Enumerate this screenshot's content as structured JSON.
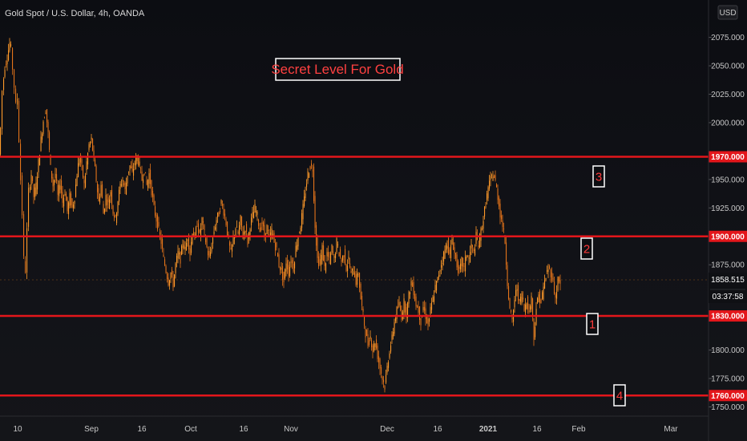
{
  "header": {
    "title": "Gold Spot / U.S. Dollar, 4h, OANDA"
  },
  "currency_button": "USD",
  "annotation": {
    "text": "Secret Level For Gold"
  },
  "colors": {
    "level_line": "#e3161b",
    "candles": "#ff8c1a",
    "accent": "#ff3b3b"
  },
  "current_price": {
    "value": "1858.515",
    "timer": "03:37:58"
  },
  "chart_data": {
    "type": "candlestick",
    "title": "Gold Spot / U.S. Dollar, 4h, OANDA",
    "ylim": [
      1732,
      2098
    ],
    "y_ticks": [
      {
        "value": 2075,
        "label": "2075.000"
      },
      {
        "value": 2050,
        "label": "2050.000"
      },
      {
        "value": 2025,
        "label": "2025.000"
      },
      {
        "value": 2000,
        "label": "2000.000"
      },
      {
        "value": 1950,
        "label": "1950.000"
      },
      {
        "value": 1925,
        "label": "1925.000"
      },
      {
        "value": 1875,
        "label": "1875.000"
      },
      {
        "value": 1800,
        "label": "1800.000"
      },
      {
        "value": 1775,
        "label": "1775.000"
      },
      {
        "value": 1750,
        "label": "1750.000"
      }
    ],
    "x_ticks": [
      "10",
      "Sep",
      "16",
      "Oct",
      "16",
      "Nov",
      "Dec",
      "16",
      "2021",
      "16",
      "Feb",
      "Mar"
    ],
    "x_ticks_bold": [
      "2021"
    ],
    "levels": [
      {
        "value": 1970,
        "label": "1970.000",
        "marker": "3"
      },
      {
        "value": 1900,
        "label": "1900.000",
        "marker": "2"
      },
      {
        "value": 1830,
        "label": "1830.000",
        "marker": "1"
      },
      {
        "value": 1760,
        "label": "1760.000",
        "marker": "4"
      }
    ],
    "price_path": [
      [
        0,
        1972
      ],
      [
        2,
        1995
      ],
      [
        4,
        2028
      ],
      [
        7,
        2050
      ],
      [
        10,
        2058
      ],
      [
        13,
        2070
      ],
      [
        15,
        2065
      ],
      [
        17,
        2048
      ],
      [
        19,
        2032
      ],
      [
        21,
        2015
      ],
      [
        23,
        2022
      ],
      [
        25,
        1985
      ],
      [
        27,
        1950
      ],
      [
        29,
        1920
      ],
      [
        31,
        1880
      ],
      [
        33,
        1870
      ],
      [
        35,
        1905
      ],
      [
        37,
        1940
      ],
      [
        40,
        1955
      ],
      [
        43,
        1935
      ],
      [
        46,
        1945
      ],
      [
        49,
        1965
      ],
      [
        52,
        1985
      ],
      [
        55,
        2002
      ],
      [
        58,
        2012
      ],
      [
        61,
        1990
      ],
      [
        64,
        1960
      ],
      [
        67,
        1945
      ],
      [
        70,
        1955
      ],
      [
        73,
        1935
      ],
      [
        76,
        1948
      ],
      [
        79,
        1930
      ],
      [
        82,
        1940
      ],
      [
        85,
        1922
      ],
      [
        88,
        1935
      ],
      [
        91,
        1925
      ],
      [
        94,
        1935
      ],
      [
        97,
        1955
      ],
      [
        100,
        1970
      ],
      [
        103,
        1960
      ],
      [
        106,
        1945
      ],
      [
        109,
        1965
      ],
      [
        112,
        1980
      ],
      [
        115,
        1985
      ],
      [
        118,
        1968
      ],
      [
        121,
        1950
      ],
      [
        124,
        1930
      ],
      [
        127,
        1945
      ],
      [
        130,
        1920
      ],
      [
        133,
        1935
      ],
      [
        136,
        1928
      ],
      [
        139,
        1940
      ],
      [
        142,
        1922
      ],
      [
        145,
        1915
      ],
      [
        148,
        1932
      ],
      [
        151,
        1945
      ],
      [
        154,
        1950
      ],
      [
        157,
        1940
      ],
      [
        160,
        1955
      ],
      [
        163,
        1962
      ],
      [
        166,
        1955
      ],
      [
        169,
        1965
      ],
      [
        172,
        1970
      ],
      [
        175,
        1962
      ],
      [
        178,
        1950
      ],
      [
        181,
        1958
      ],
      [
        184,
        1945
      ],
      [
        187,
        1955
      ],
      [
        190,
        1940
      ],
      [
        193,
        1925
      ],
      [
        196,
        1915
      ],
      [
        199,
        1905
      ],
      [
        202,
        1895
      ],
      [
        205,
        1880
      ],
      [
        208,
        1870
      ],
      [
        211,
        1860
      ],
      [
        214,
        1868
      ],
      [
        217,
        1858
      ],
      [
        220,
        1875
      ],
      [
        223,
        1885
      ],
      [
        226,
        1880
      ],
      [
        229,
        1895
      ],
      [
        232,
        1888
      ],
      [
        235,
        1900
      ],
      [
        238,
        1885
      ],
      [
        241,
        1905
      ],
      [
        244,
        1898
      ],
      [
        247,
        1912
      ],
      [
        250,
        1900
      ],
      [
        253,
        1915
      ],
      [
        256,
        1902
      ],
      [
        259,
        1890
      ],
      [
        262,
        1880
      ],
      [
        265,
        1892
      ],
      [
        268,
        1905
      ],
      [
        271,
        1915
      ],
      [
        274,
        1920
      ],
      [
        277,
        1930
      ],
      [
        280,
        1922
      ],
      [
        283,
        1912
      ],
      [
        286,
        1895
      ],
      [
        289,
        1885
      ],
      [
        292,
        1898
      ],
      [
        295,
        1908
      ],
      [
        298,
        1902
      ],
      [
        301,
        1915
      ],
      [
        304,
        1900
      ],
      [
        307,
        1908
      ],
      [
        310,
        1895
      ],
      [
        313,
        1910
      ],
      [
        316,
        1918
      ],
      [
        319,
        1925
      ],
      [
        322,
        1918
      ],
      [
        325,
        1905
      ],
      [
        328,
        1912
      ],
      [
        331,
        1900
      ],
      [
        334,
        1908
      ],
      [
        337,
        1898
      ],
      [
        340,
        1905
      ],
      [
        343,
        1895
      ],
      [
        346,
        1888
      ],
      [
        349,
        1875
      ],
      [
        352,
        1870
      ],
      [
        355,
        1860
      ],
      [
        358,
        1878
      ],
      [
        361,
        1868
      ],
      [
        364,
        1880
      ],
      [
        367,
        1872
      ],
      [
        370,
        1890
      ],
      [
        373,
        1900
      ],
      [
        376,
        1910
      ],
      [
        379,
        1925
      ],
      [
        382,
        1940
      ],
      [
        385,
        1955
      ],
      [
        388,
        1962
      ],
      [
        391,
        1960
      ],
      [
        394,
        1910
      ],
      [
        397,
        1880
      ],
      [
        400,
        1875
      ],
      [
        403,
        1890
      ],
      [
        406,
        1872
      ],
      [
        409,
        1885
      ],
      [
        412,
        1878
      ],
      [
        415,
        1890
      ],
      [
        418,
        1880
      ],
      [
        421,
        1895
      ],
      [
        424,
        1885
      ],
      [
        427,
        1878
      ],
      [
        430,
        1885
      ],
      [
        433,
        1872
      ],
      [
        436,
        1880
      ],
      [
        439,
        1866
      ],
      [
        442,
        1872
      ],
      [
        445,
        1860
      ],
      [
        448,
        1868
      ],
      [
        451,
        1845
      ],
      [
        454,
        1830
      ],
      [
        457,
        1815
      ],
      [
        460,
        1805
      ],
      [
        463,
        1812
      ],
      [
        466,
        1800
      ],
      [
        469,
        1808
      ],
      [
        472,
        1795
      ],
      [
        475,
        1785
      ],
      [
        478,
        1775
      ],
      [
        481,
        1768
      ],
      [
        484,
        1785
      ],
      [
        487,
        1800
      ],
      [
        490,
        1810
      ],
      [
        493,
        1825
      ],
      [
        496,
        1835
      ],
      [
        499,
        1840
      ],
      [
        502,
        1830
      ],
      [
        505,
        1842
      ],
      [
        508,
        1832
      ],
      [
        511,
        1848
      ],
      [
        514,
        1860
      ],
      [
        517,
        1852
      ],
      [
        520,
        1840
      ],
      [
        523,
        1835
      ],
      [
        526,
        1825
      ],
      [
        529,
        1838
      ],
      [
        532,
        1830
      ],
      [
        535,
        1822
      ],
      [
        538,
        1835
      ],
      [
        541,
        1845
      ],
      [
        544,
        1855
      ],
      [
        547,
        1862
      ],
      [
        550,
        1872
      ],
      [
        553,
        1880
      ],
      [
        556,
        1888
      ],
      [
        559,
        1895
      ],
      [
        562,
        1882
      ],
      [
        565,
        1898
      ],
      [
        568,
        1885
      ],
      [
        571,
        1875
      ],
      [
        574,
        1868
      ],
      [
        577,
        1878
      ],
      [
        580,
        1872
      ],
      [
        583,
        1885
      ],
      [
        586,
        1880
      ],
      [
        589,
        1892
      ],
      [
        592,
        1885
      ],
      [
        595,
        1900
      ],
      [
        598,
        1892
      ],
      [
        601,
        1905
      ],
      [
        604,
        1915
      ],
      [
        607,
        1930
      ],
      [
        610,
        1942
      ],
      [
        613,
        1950
      ],
      [
        616,
        1955
      ],
      [
        619,
        1948
      ],
      [
        622,
        1935
      ],
      [
        625,
        1920
      ],
      [
        628,
        1910
      ],
      [
        631,
        1895
      ],
      [
        634,
        1860
      ],
      [
        637,
        1835
      ],
      [
        640,
        1825
      ],
      [
        643,
        1845
      ],
      [
        646,
        1855
      ],
      [
        649,
        1840
      ],
      [
        652,
        1850
      ],
      [
        655,
        1835
      ],
      [
        658,
        1845
      ],
      [
        661,
        1832
      ],
      [
        664,
        1848
      ],
      [
        667,
        1810
      ],
      [
        670,
        1838
      ],
      [
        673,
        1848
      ],
      [
        676,
        1842
      ],
      [
        679,
        1855
      ],
      [
        682,
        1865
      ],
      [
        685,
        1872
      ],
      [
        688,
        1868
      ],
      [
        691,
        1860
      ],
      [
        694,
        1845
      ],
      [
        697,
        1862
      ],
      [
        700,
        1858
      ]
    ]
  }
}
